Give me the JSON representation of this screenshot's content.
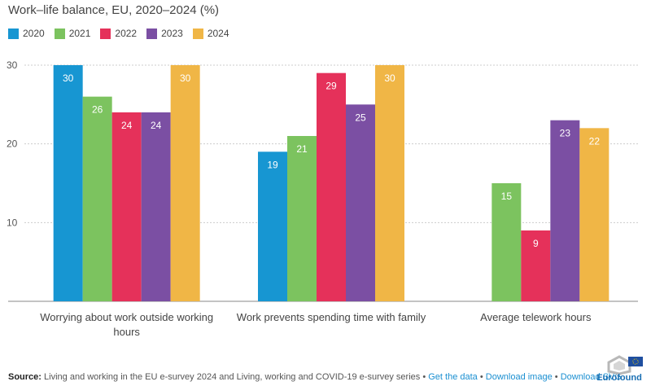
{
  "colors": {
    "2020": "#1796d2",
    "2021": "#7cc35f",
    "2022": "#e5315a",
    "2023": "#7b4fa3",
    "2024": "#f0b646",
    "grid": "#cccccc",
    "axis": "#888888",
    "link": "#1a8fd1"
  },
  "footer": {
    "source_label": "Source:",
    "source_text": "Living and working in the EU e-survey 2024 and Living, working and COVID-19 e-survey series •",
    "link_data": "Get the data",
    "sep1": "•",
    "link_image": "Download image",
    "sep2": "•",
    "link_svg": "Download SVG",
    "logo_text": "Eurofound"
  },
  "chart_data": {
    "type": "bar",
    "title": "Work–life balance, EU, 2020–2024 (%)",
    "categories": [
      "Worrying about work outside working hours",
      "Work prevents spending time with family",
      "Average telework hours"
    ],
    "category_lines": [
      [
        "Worrying about work outside working",
        "hours"
      ],
      [
        "Work prevents spending time with family"
      ],
      [
        "Average telework hours"
      ]
    ],
    "series": [
      {
        "name": "2020",
        "values": [
          30,
          19,
          null
        ]
      },
      {
        "name": "2021",
        "values": [
          26,
          21,
          15
        ]
      },
      {
        "name": "2022",
        "values": [
          24,
          29,
          9
        ]
      },
      {
        "name": "2023",
        "values": [
          24,
          25,
          23
        ]
      },
      {
        "name": "2024",
        "values": [
          30,
          30,
          22
        ]
      }
    ],
    "yticks": [
      10,
      20,
      30
    ],
    "ylim": [
      0,
      30
    ],
    "grid": true,
    "legend_position": "top-left",
    "xlabel": "",
    "ylabel": ""
  }
}
